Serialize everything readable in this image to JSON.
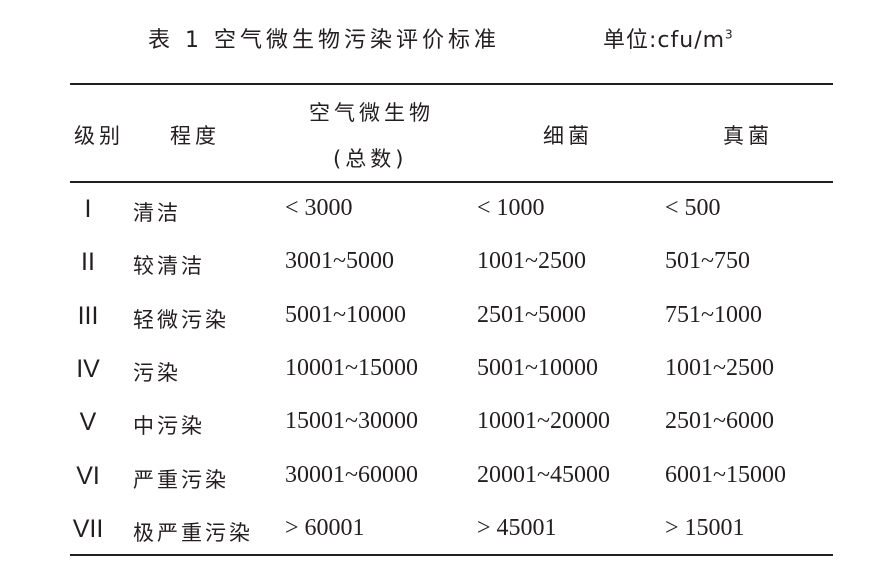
{
  "title": "表 1  空气微生物污染评价标准",
  "unit_prefix": "单位:cfu/m",
  "unit_sup": "3",
  "headers": {
    "grade": "级别",
    "degree": "程度",
    "air_line1": "空气微生物",
    "air_line2": "(总数)",
    "bacteria": "细菌",
    "fungi": "真菌"
  },
  "rows": [
    {
      "grade": "I",
      "degree": "清洁",
      "air": "< 3000",
      "bacteria": "< 1000",
      "fungi": "< 500"
    },
    {
      "grade": "II",
      "degree": "较清洁",
      "air": "3001~5000",
      "bacteria": "1001~2500",
      "fungi": "501~750"
    },
    {
      "grade": "III",
      "degree": "轻微污染",
      "air": "5001~10000",
      "bacteria": "2501~5000",
      "fungi": "751~1000"
    },
    {
      "grade": "IV",
      "degree": "污染",
      "air": "10001~15000",
      "bacteria": "5001~10000",
      "fungi": "1001~2500"
    },
    {
      "grade": "V",
      "degree": "中污染",
      "air": "15001~30000",
      "bacteria": "10001~20000",
      "fungi": "2501~6000"
    },
    {
      "grade": "VI",
      "degree": "严重污染",
      "air": "30001~60000",
      "bacteria": "20001~45000",
      "fungi": "6001~15000"
    },
    {
      "grade": "VII",
      "degree": "极严重污染",
      "air": "> 60001",
      "bacteria": "> 45001",
      "fungi": "> 15001"
    }
  ]
}
